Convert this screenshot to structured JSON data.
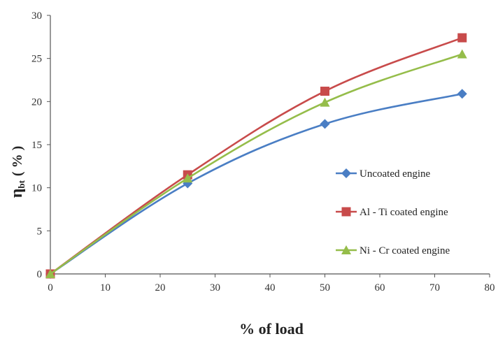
{
  "chart_data": {
    "type": "line",
    "xlabel": "% of load",
    "ylabel_main": "η",
    "ylabel_sub": "bt",
    "ylabel_unit": "( % )",
    "xlim": [
      0,
      80
    ],
    "ylim": [
      0,
      30
    ],
    "x_ticks": [
      0,
      10,
      20,
      30,
      40,
      50,
      60,
      70,
      80
    ],
    "y_ticks": [
      0,
      5,
      10,
      15,
      20,
      25,
      30
    ],
    "grid": false,
    "legend_position": "right",
    "x": [
      0,
      25,
      50,
      75
    ],
    "series": [
      {
        "name": "Uncoated engine",
        "values": [
          0,
          10.5,
          17.4,
          20.9
        ],
        "color": "#4a7ec4",
        "marker": "diamond"
      },
      {
        "name": "Al - Ti coated engine",
        "values": [
          0,
          11.5,
          21.2,
          27.4
        ],
        "color": "#c84b4b",
        "marker": "square"
      },
      {
        "name": "Ni - Cr coated engine",
        "values": [
          0,
          11.1,
          19.9,
          25.5
        ],
        "color": "#95bd4a",
        "marker": "triangle"
      }
    ]
  }
}
